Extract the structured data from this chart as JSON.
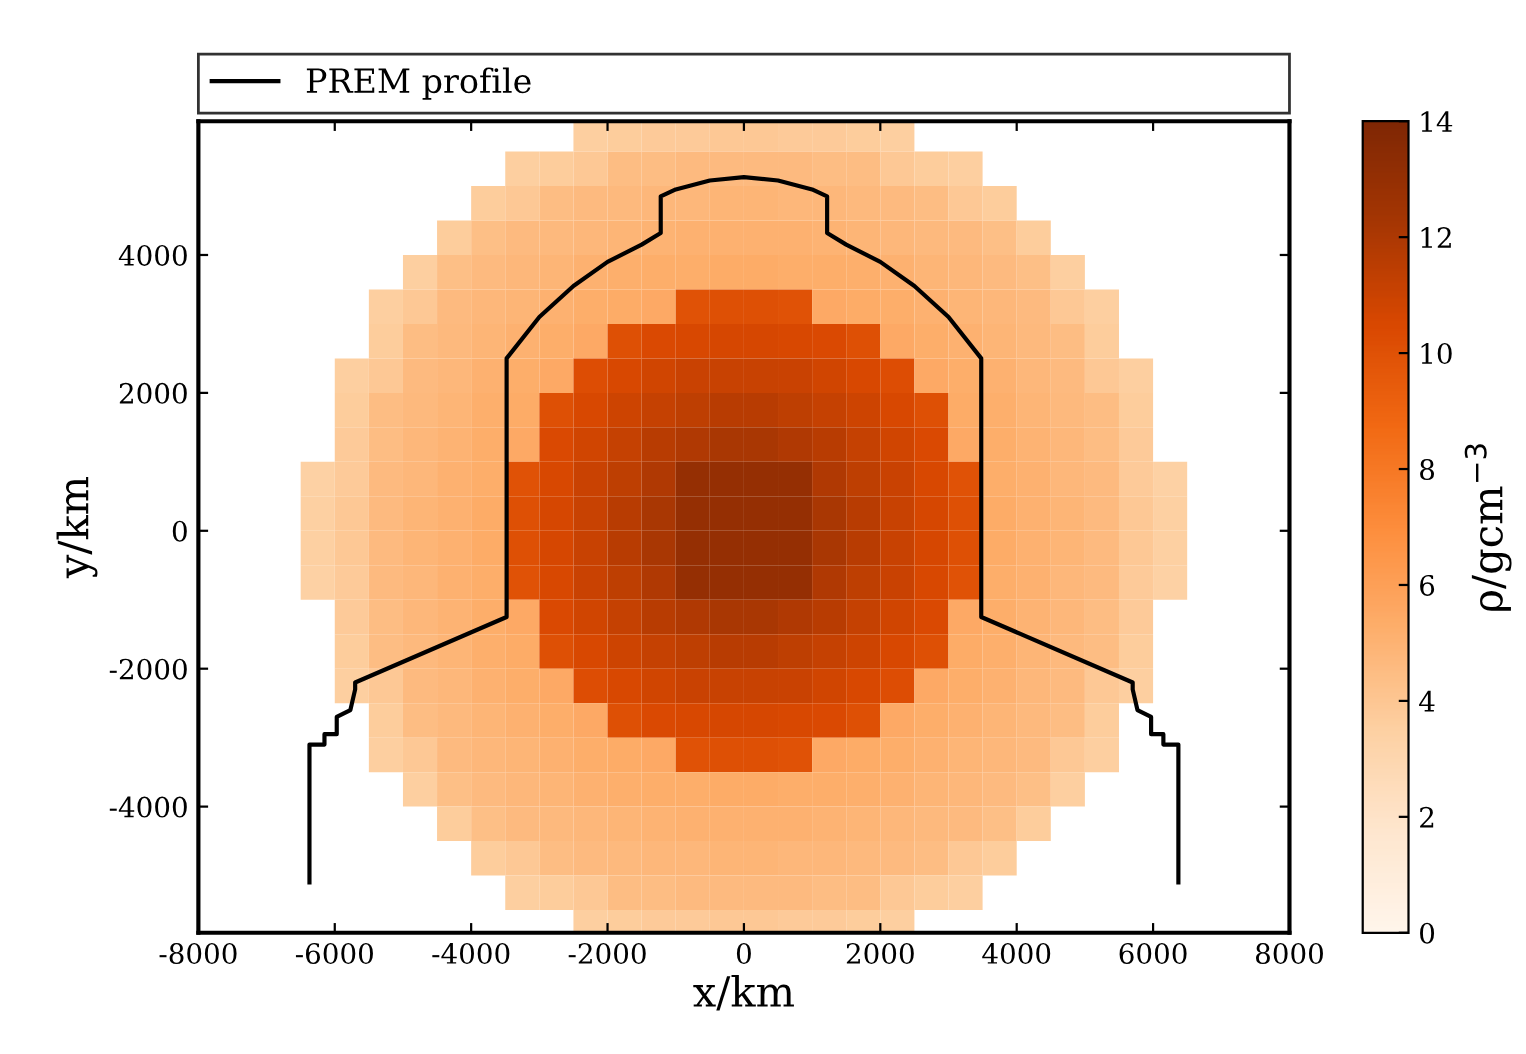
{
  "chart_data": {
    "type": "heatmap",
    "x": [
      -7750,
      -7250,
      -6750,
      -6250,
      -5750,
      -5250,
      -4750,
      -4250,
      -3750,
      -3250,
      -2750,
      -2250,
      -1750,
      -1250,
      -750,
      -250,
      250,
      750,
      1250,
      1750,
      2250,
      2750,
      3250,
      3750,
      4250,
      4750,
      5250,
      5750,
      6250,
      6750,
      7250,
      7750
    ],
    "y": [
      5750,
      5250,
      4750,
      4250,
      3750,
      3250,
      2750,
      2250,
      1750,
      1250,
      750,
      250,
      -250,
      -750,
      -1250,
      -1750,
      -2250,
      -2750,
      -3250,
      -3750,
      -4250,
      -4750,
      -5250,
      -5750
    ],
    "cells": [
      [
        null,
        null,
        null,
        null,
        null,
        null,
        null,
        null,
        null,
        null,
        null,
        3.6,
        3.7,
        3.8,
        3.8,
        3.9,
        3.9,
        3.8,
        3.8,
        3.7,
        3.6,
        null,
        null,
        null,
        null,
        null,
        null,
        null,
        null,
        null,
        null,
        null
      ],
      [
        null,
        null,
        null,
        null,
        null,
        null,
        null,
        null,
        null,
        3.6,
        3.7,
        3.9,
        4.5,
        4.5,
        4.6,
        4.6,
        4.6,
        4.6,
        4.5,
        4.5,
        3.9,
        3.7,
        3.6,
        null,
        null,
        null,
        null,
        null,
        null,
        null,
        null,
        null
      ],
      [
        null,
        null,
        null,
        null,
        null,
        null,
        null,
        null,
        3.7,
        3.9,
        4.5,
        4.6,
        4.7,
        4.8,
        4.8,
        4.9,
        4.9,
        4.8,
        4.8,
        4.7,
        4.6,
        4.5,
        3.9,
        3.7,
        null,
        null,
        null,
        null,
        null,
        null,
        null,
        null
      ],
      [
        null,
        null,
        null,
        null,
        null,
        null,
        null,
        3.7,
        4.4,
        4.6,
        4.7,
        4.8,
        4.9,
        5.0,
        5.1,
        5.1,
        5.1,
        5.1,
        5.0,
        4.9,
        4.8,
        4.7,
        4.6,
        4.4,
        3.7,
        null,
        null,
        null,
        null,
        null,
        null,
        null
      ],
      [
        null,
        null,
        null,
        null,
        null,
        null,
        3.6,
        4.4,
        4.6,
        4.8,
        4.9,
        5.1,
        5.2,
        5.3,
        5.3,
        5.4,
        5.4,
        5.3,
        5.3,
        5.2,
        5.1,
        4.9,
        4.8,
        4.6,
        4.4,
        3.6,
        null,
        null,
        null,
        null,
        null,
        null
      ],
      [
        null,
        null,
        null,
        null,
        null,
        3.6,
        3.9,
        4.6,
        4.8,
        4.9,
        5.1,
        5.3,
        5.4,
        5.5,
        10.0,
        10.1,
        10.1,
        10.0,
        5.5,
        5.4,
        5.3,
        5.1,
        4.9,
        4.8,
        4.6,
        3.9,
        3.6,
        null,
        null,
        null,
        null,
        null
      ],
      [
        null,
        null,
        null,
        null,
        null,
        3.7,
        4.5,
        4.7,
        4.9,
        5.1,
        5.3,
        5.5,
        10.1,
        10.4,
        10.5,
        10.6,
        10.6,
        10.5,
        10.4,
        10.1,
        5.5,
        5.3,
        5.1,
        4.9,
        4.7,
        4.5,
        3.7,
        null,
        null,
        null,
        null,
        null
      ],
      [
        null,
        null,
        null,
        null,
        3.6,
        3.9,
        4.6,
        4.8,
        5.1,
        5.3,
        5.5,
        10.2,
        10.5,
        10.8,
        11.0,
        11.1,
        11.1,
        11.0,
        10.8,
        10.5,
        10.2,
        5.5,
        5.3,
        5.1,
        4.8,
        4.6,
        3.9,
        3.6,
        null,
        null,
        null,
        null
      ],
      [
        null,
        null,
        null,
        null,
        3.7,
        4.5,
        4.7,
        4.9,
        5.2,
        5.4,
        10.1,
        10.5,
        10.9,
        11.2,
        11.4,
        11.6,
        11.6,
        11.4,
        11.2,
        10.9,
        10.5,
        10.1,
        5.4,
        5.2,
        4.9,
        4.7,
        4.5,
        3.7,
        null,
        null,
        null,
        null
      ],
      [
        null,
        null,
        null,
        null,
        3.8,
        4.5,
        4.8,
        5.0,
        5.3,
        5.5,
        10.4,
        10.8,
        11.2,
        11.6,
        11.9,
        12.1,
        12.1,
        11.9,
        11.6,
        11.2,
        10.8,
        10.4,
        5.5,
        5.3,
        5.0,
        4.8,
        4.5,
        3.8,
        null,
        null,
        null,
        null
      ],
      [
        null,
        null,
        null,
        3.4,
        3.8,
        4.6,
        4.8,
        5.1,
        5.3,
        10.0,
        10.5,
        11.0,
        11.4,
        11.9,
        13,
        13,
        13,
        13,
        11.9,
        11.4,
        11.0,
        10.5,
        10.0,
        5.3,
        5.1,
        4.8,
        4.6,
        3.8,
        3.4,
        null,
        null,
        null
      ],
      [
        null,
        null,
        null,
        3.5,
        3.9,
        4.6,
        4.9,
        5.1,
        5.4,
        10.1,
        10.6,
        11.1,
        11.6,
        12.1,
        13,
        13,
        13,
        13,
        12.1,
        11.6,
        11.1,
        10.6,
        10.1,
        5.4,
        5.1,
        4.9,
        4.6,
        3.9,
        3.5,
        null,
        null,
        null
      ],
      [
        null,
        null,
        null,
        3.5,
        3.9,
        4.6,
        4.9,
        5.1,
        5.4,
        10.1,
        10.6,
        11.1,
        11.6,
        12.1,
        13,
        13,
        13,
        13,
        12.1,
        11.6,
        11.1,
        10.6,
        10.1,
        5.4,
        5.1,
        4.9,
        4.6,
        3.9,
        3.5,
        null,
        null,
        null
      ],
      [
        null,
        null,
        null,
        3.4,
        3.8,
        4.6,
        4.8,
        5.1,
        5.3,
        10.0,
        10.5,
        11.0,
        11.4,
        11.9,
        13,
        13,
        13,
        13,
        11.9,
        11.4,
        11.0,
        10.5,
        10.0,
        5.3,
        5.1,
        4.8,
        4.6,
        3.8,
        3.4,
        null,
        null,
        null
      ],
      [
        null,
        null,
        null,
        null,
        3.8,
        4.5,
        4.8,
        5.0,
        5.3,
        5.5,
        10.4,
        10.8,
        11.2,
        11.6,
        11.9,
        12.1,
        12.1,
        11.9,
        11.6,
        11.2,
        10.8,
        10.4,
        5.5,
        5.3,
        5.0,
        4.8,
        4.5,
        3.8,
        null,
        null,
        null,
        null
      ],
      [
        null,
        null,
        null,
        null,
        3.7,
        4.5,
        4.7,
        4.9,
        5.2,
        5.4,
        10.1,
        10.5,
        10.9,
        11.2,
        11.4,
        11.6,
        11.6,
        11.4,
        11.2,
        10.9,
        10.5,
        10.1,
        5.4,
        5.2,
        4.9,
        4.7,
        4.5,
        3.7,
        null,
        null,
        null,
        null
      ],
      [
        null,
        null,
        null,
        null,
        3.6,
        3.9,
        4.6,
        4.8,
        5.1,
        5.3,
        5.5,
        10.2,
        10.5,
        10.8,
        11.0,
        11.1,
        11.1,
        11.0,
        10.8,
        10.5,
        10.2,
        5.5,
        5.3,
        5.1,
        4.8,
        4.6,
        3.9,
        3.6,
        null,
        null,
        null,
        null
      ],
      [
        null,
        null,
        null,
        null,
        null,
        3.7,
        4.5,
        4.7,
        4.9,
        5.1,
        5.3,
        5.5,
        10.1,
        10.4,
        10.5,
        10.6,
        10.6,
        10.5,
        10.4,
        10.1,
        5.5,
        5.3,
        5.1,
        4.9,
        4.7,
        4.5,
        3.7,
        null,
        null,
        null,
        null,
        null
      ],
      [
        null,
        null,
        null,
        null,
        null,
        3.6,
        3.9,
        4.6,
        4.8,
        4.9,
        5.1,
        5.3,
        5.4,
        5.5,
        10.0,
        10.1,
        10.1,
        10.0,
        5.5,
        5.4,
        5.3,
        5.1,
        4.9,
        4.8,
        4.6,
        3.9,
        3.6,
        null,
        null,
        null,
        null,
        null
      ],
      [
        null,
        null,
        null,
        null,
        null,
        null,
        3.6,
        4.4,
        4.6,
        4.8,
        4.9,
        5.1,
        5.2,
        5.3,
        5.3,
        5.4,
        5.4,
        5.3,
        5.3,
        5.2,
        5.1,
        4.9,
        4.8,
        4.6,
        4.4,
        3.6,
        null,
        null,
        null,
        null,
        null,
        null
      ],
      [
        null,
        null,
        null,
        null,
        null,
        null,
        null,
        3.7,
        4.4,
        4.6,
        4.7,
        4.8,
        4.9,
        5.0,
        5.1,
        5.1,
        5.1,
        5.1,
        5.0,
        4.9,
        4.8,
        4.7,
        4.6,
        4.4,
        3.7,
        null,
        null,
        null,
        null,
        null,
        null,
        null
      ],
      [
        null,
        null,
        null,
        null,
        null,
        null,
        null,
        null,
        3.7,
        3.9,
        4.5,
        4.6,
        4.7,
        4.8,
        4.8,
        4.9,
        4.9,
        4.8,
        4.8,
        4.7,
        4.6,
        4.5,
        3.9,
        3.7,
        null,
        null,
        null,
        null,
        null,
        null,
        null,
        null
      ],
      [
        null,
        null,
        null,
        null,
        null,
        null,
        null,
        null,
        null,
        3.6,
        3.7,
        3.9,
        4.5,
        4.5,
        4.6,
        4.6,
        4.6,
        4.6,
        4.5,
        4.5,
        3.9,
        3.7,
        3.6,
        null,
        null,
        null,
        null,
        null,
        null,
        null,
        null,
        null
      ],
      [
        null,
        null,
        null,
        null,
        null,
        null,
        null,
        null,
        null,
        null,
        null,
        3.6,
        3.7,
        3.8,
        3.8,
        3.9,
        3.9,
        3.8,
        3.8,
        3.7,
        3.6,
        null,
        null,
        null,
        null,
        null,
        null,
        null,
        null,
        null,
        null,
        null
      ]
    ],
    "clim": [
      0,
      14
    ],
    "cticks": [
      0,
      2,
      4,
      6,
      8,
      10,
      12,
      14
    ],
    "clabel": "ρ/gcm$^{−3}$",
    "xlabel": "x/km",
    "ylabel": "y/km",
    "xlim": [
      -8000,
      8000
    ],
    "xticks": [
      -8000,
      -6000,
      -4000,
      -2000,
      0,
      2000,
      4000,
      6000,
      8000
    ],
    "ylim": [
      -5830,
      5940
    ],
    "yticks": [
      -4000,
      -2000,
      0,
      2000,
      4000
    ],
    "grid": false,
    "legend": "top",
    "series": [
      {
        "name": "PREM profile",
        "type": "line",
        "color": "#000000",
        "x": [
          -6371,
          -6371,
          -6151,
          -6151,
          -5971,
          -5971,
          -5771,
          -5701,
          -5701,
          -3480,
          -3480,
          -3000,
          -2500,
          -2000,
          -1500,
          -1220,
          -1220,
          -1000,
          -500,
          0,
          500,
          1000,
          1220,
          1220,
          1500,
          2000,
          2500,
          3000,
          3480,
          3480,
          5701,
          5701,
          5771,
          5971,
          5971,
          6151,
          6151,
          6371,
          6371
        ],
        "values": [
          -5100,
          -3100,
          -3100,
          -2950,
          -2950,
          -2700,
          -2600,
          -2300,
          -2200,
          -1250,
          2500,
          3100,
          3550,
          3900,
          4150,
          4320,
          4850,
          4950,
          5080,
          5130,
          5080,
          4950,
          4850,
          4320,
          4150,
          3900,
          3550,
          3100,
          2500,
          -1250,
          -2200,
          -2300,
          -2600,
          -2700,
          -2950,
          -2950,
          -3100,
          -3100,
          -5100
        ]
      }
    ]
  }
}
